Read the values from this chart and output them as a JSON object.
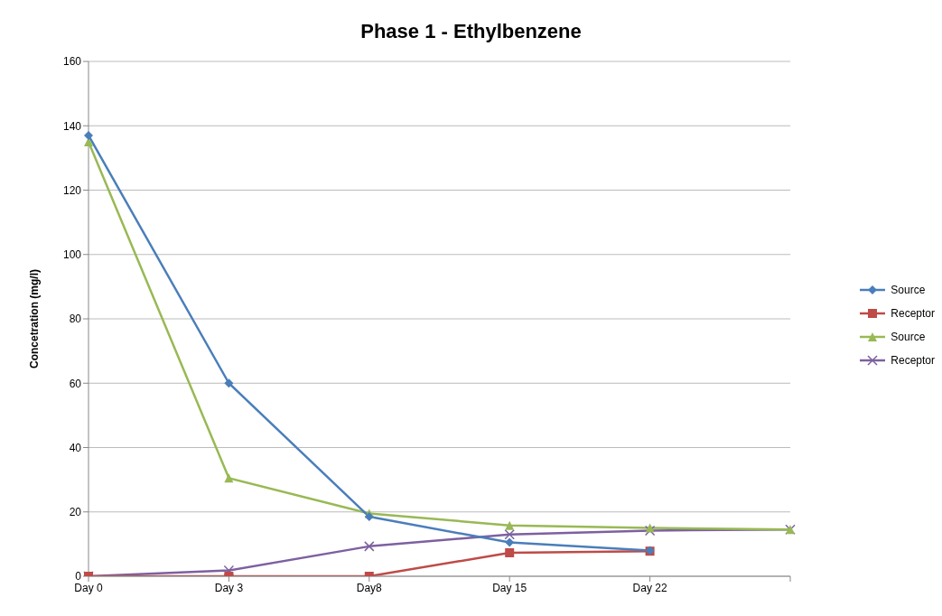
{
  "chart_data": {
    "type": "line",
    "title": "Phase 1 - Ethylbenzene",
    "ylabel": "Concetration (mg/l)",
    "categories": [
      "Day 0",
      "Day 3",
      "Day8",
      "Day 15",
      "Day 22",
      null
    ],
    "series": [
      {
        "name": "Source",
        "color": "#4a7ebb",
        "marker": "diamond",
        "values": [
          137,
          60,
          18.5,
          10.5,
          8,
          null
        ]
      },
      {
        "name": "Receptor",
        "color": "#be4b48",
        "marker": "square",
        "values": [
          0,
          0,
          0,
          7.3,
          7.8,
          null
        ]
      },
      {
        "name": "Source",
        "color": "#98b954",
        "marker": "triangle",
        "values": [
          135,
          30.5,
          19.5,
          15.8,
          15,
          14.5
        ]
      },
      {
        "name": "Receptor",
        "color": "#7d60a0",
        "marker": "cross",
        "values": [
          0,
          1.8,
          9.3,
          13,
          14.2,
          14.5
        ]
      }
    ],
    "ylim": [
      0,
      160
    ],
    "yticks": [
      0,
      20,
      40,
      60,
      80,
      100,
      120,
      140,
      160
    ],
    "grid": "y",
    "legend": "right"
  }
}
